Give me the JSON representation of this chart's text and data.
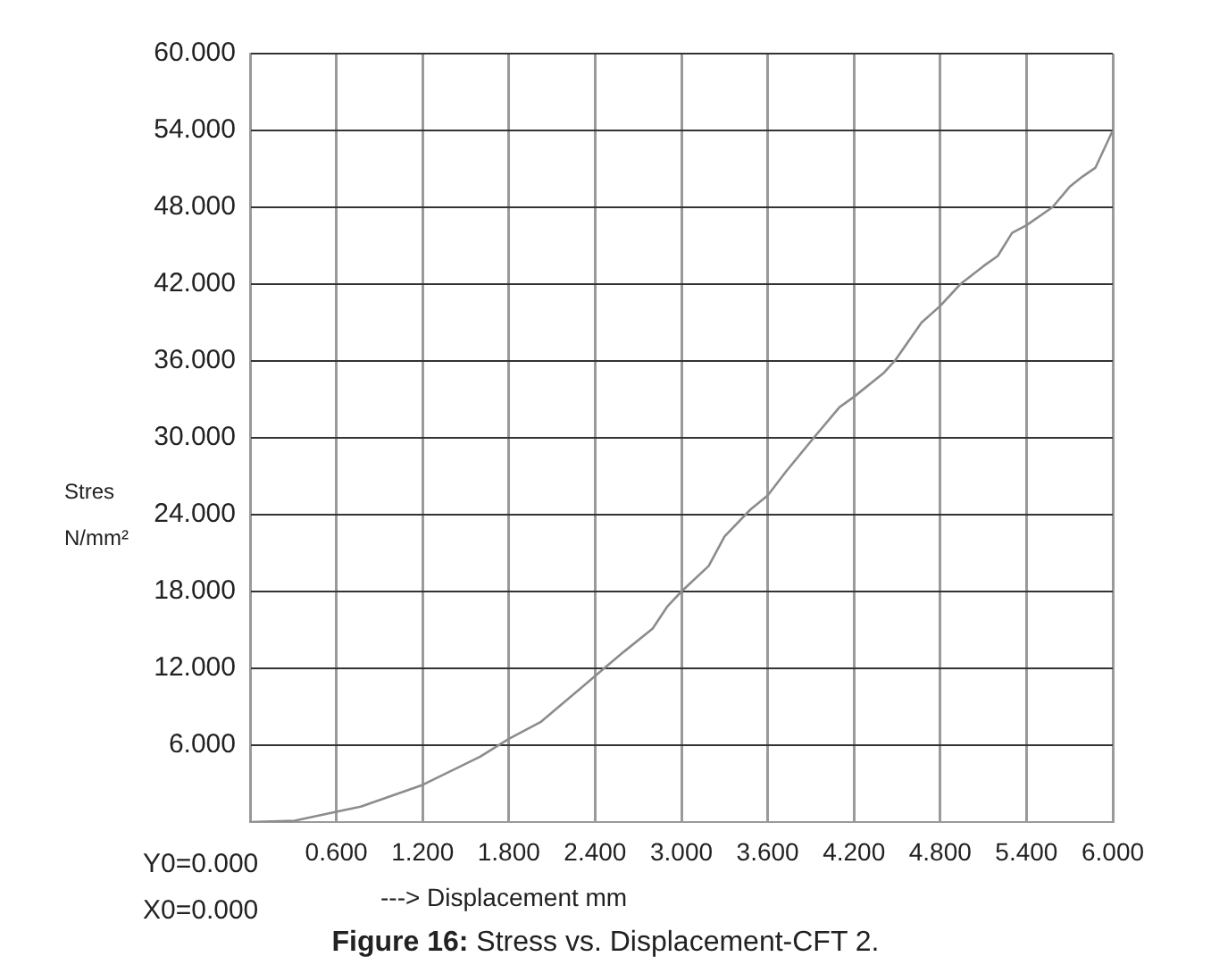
{
  "chart_data": {
    "type": "line",
    "title": "Figure 16: Stress vs. Displacement-CFT 2.",
    "xlabel": "---> Displacement mm",
    "ylabel": "Stres N/mm²",
    "annotations": [
      "Y0=0.000",
      "X0=0.000"
    ],
    "series": [
      {
        "color": "#8c8c8c",
        "x": [
          0,
          0.31,
          0.6,
          0.77,
          1.2,
          1.6,
          1.8,
          2.02,
          2.4,
          2.6,
          2.8,
          2.9,
          3.0,
          3.19,
          3.3,
          3.48,
          3.6,
          3.73,
          3.92,
          4.1,
          4.2,
          4.41,
          4.49,
          4.67,
          4.8,
          4.94,
          5.1,
          5.2,
          5.3,
          5.4,
          5.58,
          5.7,
          5.79,
          5.88,
          6.0
        ],
        "values": [
          0,
          0.1,
          0.8,
          1.2,
          2.9,
          5.1,
          6.5,
          7.8,
          11.4,
          13.3,
          15.1,
          16.8,
          18,
          20,
          22.3,
          24.4,
          25.5,
          27.4,
          30,
          32.4,
          33.2,
          35.1,
          36.1,
          39,
          40.3,
          42,
          43.4,
          44.2,
          46,
          46.6,
          48,
          49.6,
          50.4,
          51.1,
          54
        ]
      }
    ],
    "xlim": [
      0,
      6
    ],
    "ylim": [
      0,
      60
    ],
    "xticks": [
      {
        "value": 0,
        "label": null
      },
      {
        "value": 0.6,
        "label": "0.600"
      },
      {
        "value": 1.2,
        "label": "1.200"
      },
      {
        "value": 1.8,
        "label": "1.800"
      },
      {
        "value": 2.4,
        "label": "2.400"
      },
      {
        "value": 3.0,
        "label": "3.000"
      },
      {
        "value": 3.6,
        "label": "3.600"
      },
      {
        "value": 4.2,
        "label": "4.200"
      },
      {
        "value": 4.8,
        "label": "4.800"
      },
      {
        "value": 5.4,
        "label": "5.400"
      },
      {
        "value": 6.0,
        "label": "6.000"
      }
    ],
    "yticks": [
      {
        "value": 0,
        "label": null
      },
      {
        "value": 6,
        "label": "6.000"
      },
      {
        "value": 12,
        "label": "12.000"
      },
      {
        "value": 18,
        "label": "18.000"
      },
      {
        "value": 24,
        "label": "24.000"
      },
      {
        "value": 30,
        "label": "30.000"
      },
      {
        "value": 36,
        "label": "36.000"
      },
      {
        "value": 42,
        "label": "42.000"
      },
      {
        "value": 48,
        "label": "48.000"
      },
      {
        "value": 54,
        "label": "54.000"
      },
      {
        "value": 60,
        "label": "60.000"
      }
    ],
    "grid": true,
    "marker": "none",
    "line_style": "solid",
    "legend": false
  }
}
